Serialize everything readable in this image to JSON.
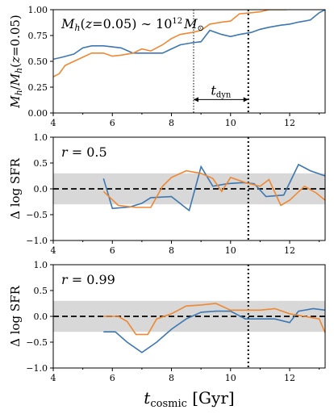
{
  "chart_data": [
    {
      "type": "line",
      "ylabel": "M_h/M_h(z=0.05)",
      "annotation": "M_h(z=0.05) ~ 10^12 M_sun",
      "interval_label": "t_dyn",
      "xlim": [
        4,
        13.2
      ],
      "ylim": [
        0,
        1.0
      ],
      "xticks": [
        "4",
        "6",
        "8",
        "10",
        "12"
      ],
      "yticks": [
        "0.00",
        "0.25",
        "0.50",
        "0.75",
        "1.00"
      ],
      "vlines": [
        {
          "x": 8.75,
          "style": "dotted-thin"
        },
        {
          "x": 10.6,
          "style": "dotted-thick"
        }
      ],
      "arrow": {
        "x0": 8.75,
        "x1": 10.6,
        "y": 0.13
      },
      "series": [
        {
          "color": "#3d77b1",
          "x": [
            4.0,
            4.3,
            4.7,
            5.0,
            5.3,
            5.7,
            6.0,
            6.3,
            6.7,
            7.0,
            7.3,
            7.7,
            8.0,
            8.3,
            8.7,
            9.0,
            9.3,
            9.7,
            10.0,
            10.3,
            10.7,
            11.0,
            11.3,
            11.7,
            12.0,
            12.3,
            12.7,
            13.0,
            13.2
          ],
          "values": [
            0.52,
            0.54,
            0.57,
            0.63,
            0.65,
            0.65,
            0.64,
            0.63,
            0.58,
            0.58,
            0.58,
            0.58,
            0.62,
            0.66,
            0.68,
            0.69,
            0.8,
            0.76,
            0.74,
            0.76,
            0.78,
            0.81,
            0.83,
            0.85,
            0.86,
            0.88,
            0.9,
            0.97,
            1.0
          ]
        },
        {
          "color": "#ef8833",
          "x": [
            4.0,
            4.2,
            4.4,
            4.7,
            5.0,
            5.3,
            5.7,
            6.0,
            6.3,
            6.7,
            7.0,
            7.3,
            7.7,
            8.0,
            8.3,
            8.7,
            9.0,
            9.3,
            9.7,
            10.0,
            10.3,
            10.7,
            11.0,
            11.3,
            11.7,
            11.9
          ],
          "values": [
            0.35,
            0.38,
            0.46,
            0.5,
            0.54,
            0.58,
            0.58,
            0.55,
            0.56,
            0.58,
            0.62,
            0.6,
            0.66,
            0.72,
            0.76,
            0.78,
            0.8,
            0.86,
            0.88,
            0.89,
            0.96,
            0.97,
            0.98,
            1.0,
            1.0,
            1.0
          ]
        }
      ]
    },
    {
      "type": "line",
      "ylabel": "Δ log SFR",
      "annotation": "r = 0.5",
      "xlim": [
        4,
        13.2
      ],
      "ylim": [
        -1.0,
        1.0
      ],
      "xticks": [
        "4",
        "6",
        "8",
        "10",
        "12"
      ],
      "yticks": [
        "−1.0",
        "−0.5",
        "0.0",
        "0.5",
        "1.0"
      ],
      "band": [
        -0.3,
        0.3
      ],
      "hline": 0,
      "vlines": [
        {
          "x": 10.6,
          "style": "dotted-thick"
        }
      ],
      "series": [
        {
          "color": "#3d77b1",
          "x": [
            5.7,
            6.0,
            6.6,
            7.0,
            7.3,
            8.0,
            8.6,
            9.0,
            9.4,
            9.9,
            10.4,
            10.8,
            11.2,
            11.8,
            12.3,
            12.7,
            13.2
          ],
          "values": [
            0.2,
            -0.38,
            -0.35,
            -0.28,
            -0.17,
            -0.15,
            -0.42,
            0.43,
            0.05,
            0.1,
            0.12,
            0.1,
            -0.15,
            -0.12,
            0.47,
            0.35,
            0.25
          ]
        },
        {
          "color": "#ef8833",
          "x": [
            5.7,
            6.2,
            6.8,
            7.3,
            7.7,
            8.0,
            8.5,
            9.0,
            9.4,
            9.7,
            10.0,
            10.5,
            11.0,
            11.3,
            11.7,
            12.0,
            12.5,
            12.9,
            13.2
          ],
          "values": [
            -0.05,
            -0.32,
            -0.36,
            -0.36,
            0.05,
            0.22,
            0.35,
            0.3,
            0.2,
            -0.05,
            0.22,
            0.12,
            0.05,
            0.18,
            -0.32,
            -0.22,
            0.05,
            -0.08,
            -0.22
          ]
        }
      ]
    },
    {
      "type": "line",
      "ylabel": "Δ log SFR",
      "xlabel": "t_cosmic [Gyr]",
      "annotation": "r = 0.99",
      "xlim": [
        4,
        13.2
      ],
      "ylim": [
        -1.0,
        1.0
      ],
      "xticks": [
        "4",
        "6",
        "8",
        "10",
        "12"
      ],
      "yticks": [
        "−1.0",
        "−0.5",
        "0.0",
        "0.5",
        "1.0"
      ],
      "band": [
        -0.3,
        0.3
      ],
      "hline": 0,
      "vlines": [
        {
          "x": 10.6,
          "style": "dotted-thick"
        }
      ],
      "series": [
        {
          "color": "#3d77b1",
          "x": [
            5.7,
            6.1,
            6.5,
            7.0,
            7.5,
            8.0,
            8.5,
            9.0,
            9.5,
            10.0,
            10.5,
            11.0,
            11.5,
            12.0,
            12.3,
            12.8,
            13.2
          ],
          "values": [
            -0.3,
            -0.3,
            -0.5,
            -0.7,
            -0.5,
            -0.25,
            -0.05,
            0.08,
            0.1,
            0.1,
            -0.05,
            -0.05,
            -0.05,
            -0.12,
            0.1,
            0.15,
            0.12
          ]
        },
        {
          "color": "#ef8833",
          "x": [
            5.7,
            6.2,
            6.5,
            6.8,
            7.2,
            7.5,
            8.0,
            8.5,
            9.0,
            9.5,
            10.0,
            10.5,
            11.0,
            11.5,
            12.0,
            12.5,
            13.0,
            13.2
          ],
          "values": [
            0.0,
            0.0,
            -0.1,
            -0.35,
            -0.35,
            -0.05,
            0.05,
            0.2,
            0.22,
            0.25,
            0.12,
            0.12,
            0.12,
            0.15,
            0.05,
            0.0,
            -0.05,
            -0.32
          ]
        }
      ]
    }
  ]
}
